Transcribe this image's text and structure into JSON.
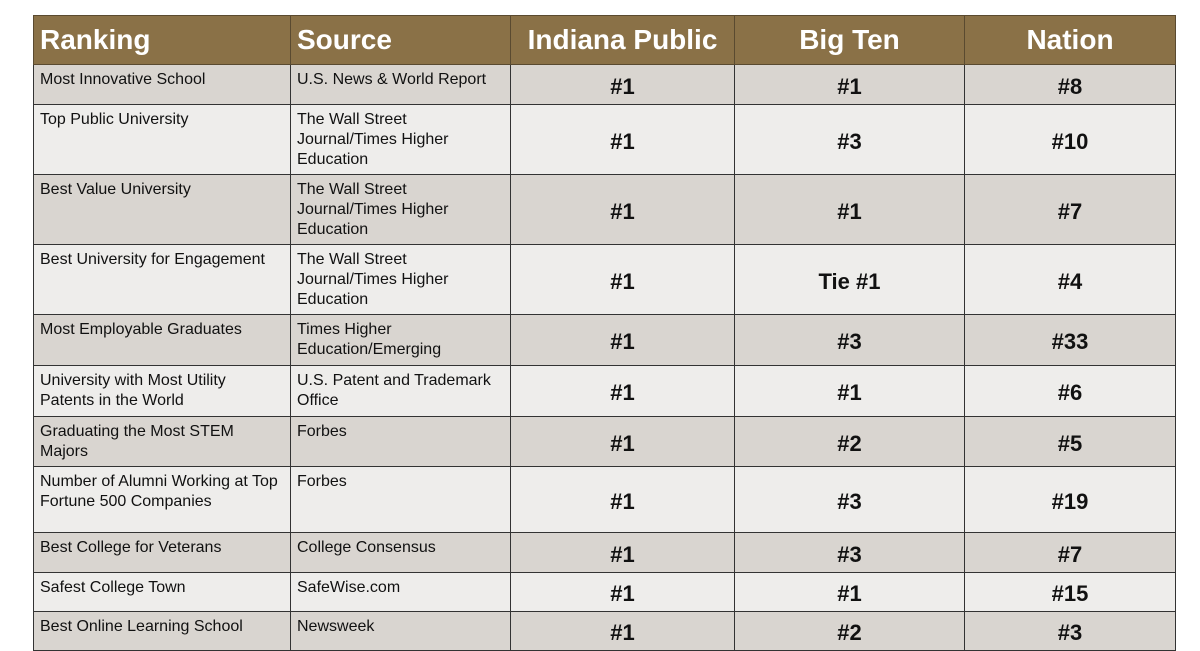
{
  "headers": {
    "ranking": "Ranking",
    "source": "Source",
    "indiana": "Indiana Public",
    "bigten": "Big Ten",
    "nation": "Nation"
  },
  "rows": [
    {
      "ranking": "Most Innovative School",
      "source": "U.S. News & World Report",
      "indiana": "#1",
      "bigten": "#1",
      "nation": "#8"
    },
    {
      "ranking": "Top Public University",
      "source": "The Wall Street Journal/Times Higher Education",
      "indiana": "#1",
      "bigten": "#3",
      "nation": "#10"
    },
    {
      "ranking": "Best Value University",
      "source": "The Wall Street Journal/Times Higher Education",
      "indiana": "#1",
      "bigten": "#1",
      "nation": "#7"
    },
    {
      "ranking": "Best University for Engagement",
      "source": "The Wall Street Journal/Times Higher Education",
      "indiana": "#1",
      "bigten": "Tie #1",
      "nation": "#4"
    },
    {
      "ranking": "Most Employable Graduates",
      "source": "Times Higher Education/Emerging",
      "indiana": "#1",
      "bigten": "#3",
      "nation": "#33"
    },
    {
      "ranking": "University with Most Utility Patents in the World",
      "source": "U.S. Patent and Trademark Office",
      "indiana": "#1",
      "bigten": "#1",
      "nation": "#6"
    },
    {
      "ranking": "Graduating the Most STEM Majors",
      "source": "Forbes",
      "indiana": "#1",
      "bigten": "#2",
      "nation": "#5"
    },
    {
      "ranking": "Number of Alumni Working at Top Fortune 500 Companies",
      "source": "Forbes",
      "indiana": "#1",
      "bigten": "#3",
      "nation": "#19"
    },
    {
      "ranking": "Best College for Veterans",
      "source": "College Consensus",
      "indiana": "#1",
      "bigten": "#3",
      "nation": "#7"
    },
    {
      "ranking": "Safest College Town",
      "source": "SafeWise.com",
      "indiana": "#1",
      "bigten": "#1",
      "nation": "#15"
    },
    {
      "ranking": "Best Online Learning School",
      "source": "Newsweek",
      "indiana": "#1",
      "bigten": "#2",
      "nation": "#3"
    }
  ]
}
